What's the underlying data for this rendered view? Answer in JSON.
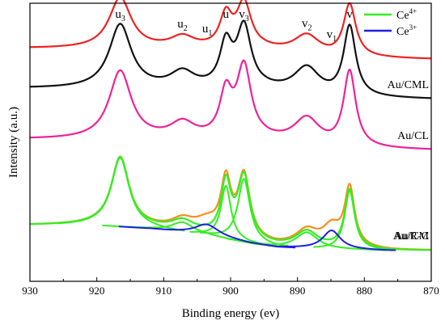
{
  "chart_data": {
    "type": "line",
    "xlabel": "Binding energy (ev)",
    "ylabel": "Intensity (a.u.)",
    "xlim": [
      930,
      870
    ],
    "x_reversed": true,
    "x_ticks": [
      930,
      920,
      910,
      900,
      890,
      880,
      870
    ],
    "y_ticks_shown": false,
    "grid": false,
    "legend": {
      "position": "top-right",
      "entries": [
        {
          "base": "Ce",
          "sup": "4+",
          "color": "#33ee22"
        },
        {
          "base": "Ce",
          "sup": "3+",
          "color": "#1f1fe0"
        }
      ]
    },
    "peak_labels": [
      {
        "base": "u",
        "sub": "3",
        "x": 916.5
      },
      {
        "base": "u",
        "sub": "2",
        "x": 907.2
      },
      {
        "base": "u",
        "sub": "1",
        "x": 903.5
      },
      {
        "base": "u",
        "sub": "",
        "x": 900.7
      },
      {
        "base": "v",
        "sub": "3",
        "x": 898.0
      },
      {
        "base": "v",
        "sub": "2",
        "x": 888.6
      },
      {
        "base": "v",
        "sub": "1",
        "x": 884.9
      },
      {
        "base": "v",
        "sub": "",
        "x": 882.2
      }
    ],
    "series": [
      {
        "name": "",
        "color": "#ee2222",
        "offset": 285,
        "baseline": [
          [
            930,
            15
          ],
          [
            895,
            12
          ],
          [
            885,
            2
          ],
          [
            870,
            0
          ]
        ],
        "peaks": [
          [
            916.5,
            2.0,
            70
          ],
          [
            907.2,
            2.2,
            16
          ],
          [
            900.7,
            1.1,
            44
          ],
          [
            898.0,
            1.3,
            62
          ],
          [
            888.6,
            2.3,
            26
          ],
          [
            882.2,
            1.1,
            72
          ]
        ]
      },
      {
        "name": "Au/CML",
        "color": "#111111",
        "offset": 230,
        "baseline": [
          [
            930,
            15
          ],
          [
            895,
            12
          ],
          [
            885,
            2
          ],
          [
            870,
            0
          ]
        ],
        "peaks": [
          [
            916.5,
            2.0,
            88
          ],
          [
            907.2,
            2.2,
            22
          ],
          [
            900.7,
            1.1,
            58
          ],
          [
            898.0,
            1.3,
            83
          ],
          [
            888.6,
            2.3,
            36
          ],
          [
            882.2,
            1.1,
            96
          ]
        ]
      },
      {
        "name": "Au/CL",
        "color": "#ee2299",
        "offset": 160,
        "baseline": [
          [
            930,
            15
          ],
          [
            895,
            12
          ],
          [
            885,
            2
          ],
          [
            870,
            0
          ]
        ],
        "peaks": [
          [
            916.5,
            2.0,
            94
          ],
          [
            907.2,
            2.2,
            22
          ],
          [
            900.7,
            1.1,
            60
          ],
          [
            898.0,
            1.3,
            98
          ],
          [
            888.6,
            2.3,
            36
          ],
          [
            882.2,
            1.1,
            104
          ]
        ]
      },
      {
        "name": "Au/CM",
        "color": "#ff8c1a",
        "offset": 22,
        "baseline": [
          [
            930,
            35
          ],
          [
            920,
            35
          ],
          [
            912,
            30
          ],
          [
            904,
            22
          ],
          [
            897,
            10
          ],
          [
            893,
            5
          ],
          [
            885,
            2
          ],
          [
            880,
            1
          ],
          [
            876,
            0
          ],
          [
            870,
            0
          ]
        ],
        "peaks": [
          [
            916.5,
            1.6,
            95
          ],
          [
            907.2,
            2.0,
            14
          ],
          [
            903.5,
            2.2,
            15
          ],
          [
            900.7,
            0.9,
            73
          ],
          [
            898.0,
            1.1,
            87
          ],
          [
            888.6,
            2.0,
            22
          ],
          [
            884.9,
            1.6,
            26
          ],
          [
            882.2,
            0.9,
            81
          ]
        ]
      },
      {
        "name": "Au/R-C",
        "color": "#33ee22",
        "offset": 22,
        "baseline": [
          [
            930,
            35
          ],
          [
            920,
            35
          ],
          [
            912,
            30
          ],
          [
            904,
            22
          ],
          [
            897,
            10
          ],
          [
            893,
            5
          ],
          [
            885,
            2
          ],
          [
            880,
            1
          ],
          [
            876,
            0
          ],
          [
            870,
            0
          ]
        ],
        "peaks": [
          [
            916.5,
            1.6,
            95
          ],
          [
            907.2,
            2.0,
            14
          ],
          [
            900.7,
            0.9,
            73
          ],
          [
            898.0,
            1.1,
            87
          ],
          [
            888.6,
            2.0,
            22
          ],
          [
            882.2,
            0.9,
            81
          ]
        ]
      }
    ],
    "components": [
      {
        "color": "#33ee22",
        "peaks": [
          [
            916.5,
            1.6,
            95
          ],
          [
            907.2,
            2.0,
            14
          ],
          [
            900.7,
            0.9,
            73
          ],
          [
            898.0,
            1.1,
            87
          ],
          [
            888.6,
            2.0,
            22
          ],
          [
            882.2,
            0.9,
            81
          ]
        ]
      },
      {
        "color": "#1f1fe0",
        "peaks": [
          [
            903.5,
            2.2,
            15
          ],
          [
            884.9,
            1.6,
            26
          ]
        ]
      }
    ]
  }
}
